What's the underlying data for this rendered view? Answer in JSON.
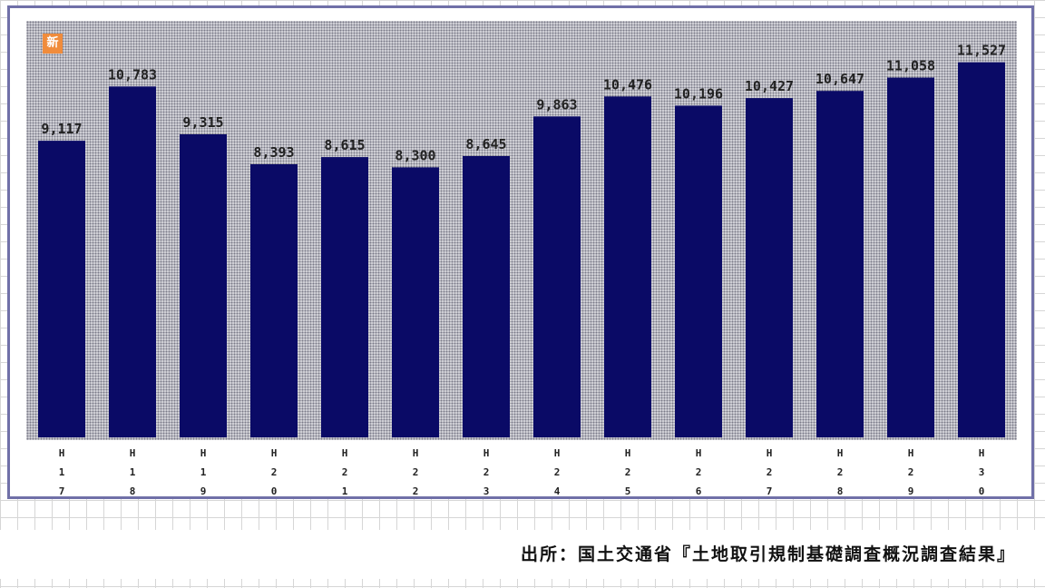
{
  "chart_data": {
    "type": "bar",
    "categories": [
      "H17",
      "H18",
      "H19",
      "H20",
      "H21",
      "H22",
      "H23",
      "H24",
      "H25",
      "H26",
      "H27",
      "H28",
      "H29",
      "H30"
    ],
    "values": [
      9117,
      10783,
      9315,
      8393,
      8615,
      8300,
      8645,
      9863,
      10476,
      10196,
      10427,
      10647,
      11058,
      11527
    ],
    "data_labels": [
      "9,117",
      "10,783",
      "9,315",
      "8,393",
      "8,615",
      "8,300",
      "8,645",
      "9,863",
      "10,476",
      "10,196",
      "10,427",
      "10,647",
      "11,058",
      "11,527"
    ],
    "tick_labels": [
      [
        "H",
        "1",
        "7"
      ],
      [
        "H",
        "1",
        "8"
      ],
      [
        "H",
        "1",
        "9"
      ],
      [
        "H",
        "2",
        "0"
      ],
      [
        "H",
        "2",
        "1"
      ],
      [
        "H",
        "2",
        "2"
      ],
      [
        "H",
        "2",
        "3"
      ],
      [
        "H",
        "2",
        "4"
      ],
      [
        "H",
        "2",
        "5"
      ],
      [
        "H",
        "2",
        "6"
      ],
      [
        "H",
        "2",
        "7"
      ],
      [
        "H",
        "2",
        "8"
      ],
      [
        "H",
        "2",
        "9"
      ],
      [
        "H",
        "3",
        "0"
      ]
    ],
    "title": "",
    "xlabel": "",
    "ylabel": "",
    "ylim": [
      0,
      12800
    ],
    "grid": false,
    "legend": "none",
    "bar_color": "#0a0a66",
    "plot_background": "#d2d2d8"
  },
  "badge": {
    "icon": "new-badge-icon",
    "text": "新",
    "color": "#f08c3c"
  },
  "source": {
    "text": "出所：国土交通省『土地取引規制基礎調査概況調査結果』"
  }
}
